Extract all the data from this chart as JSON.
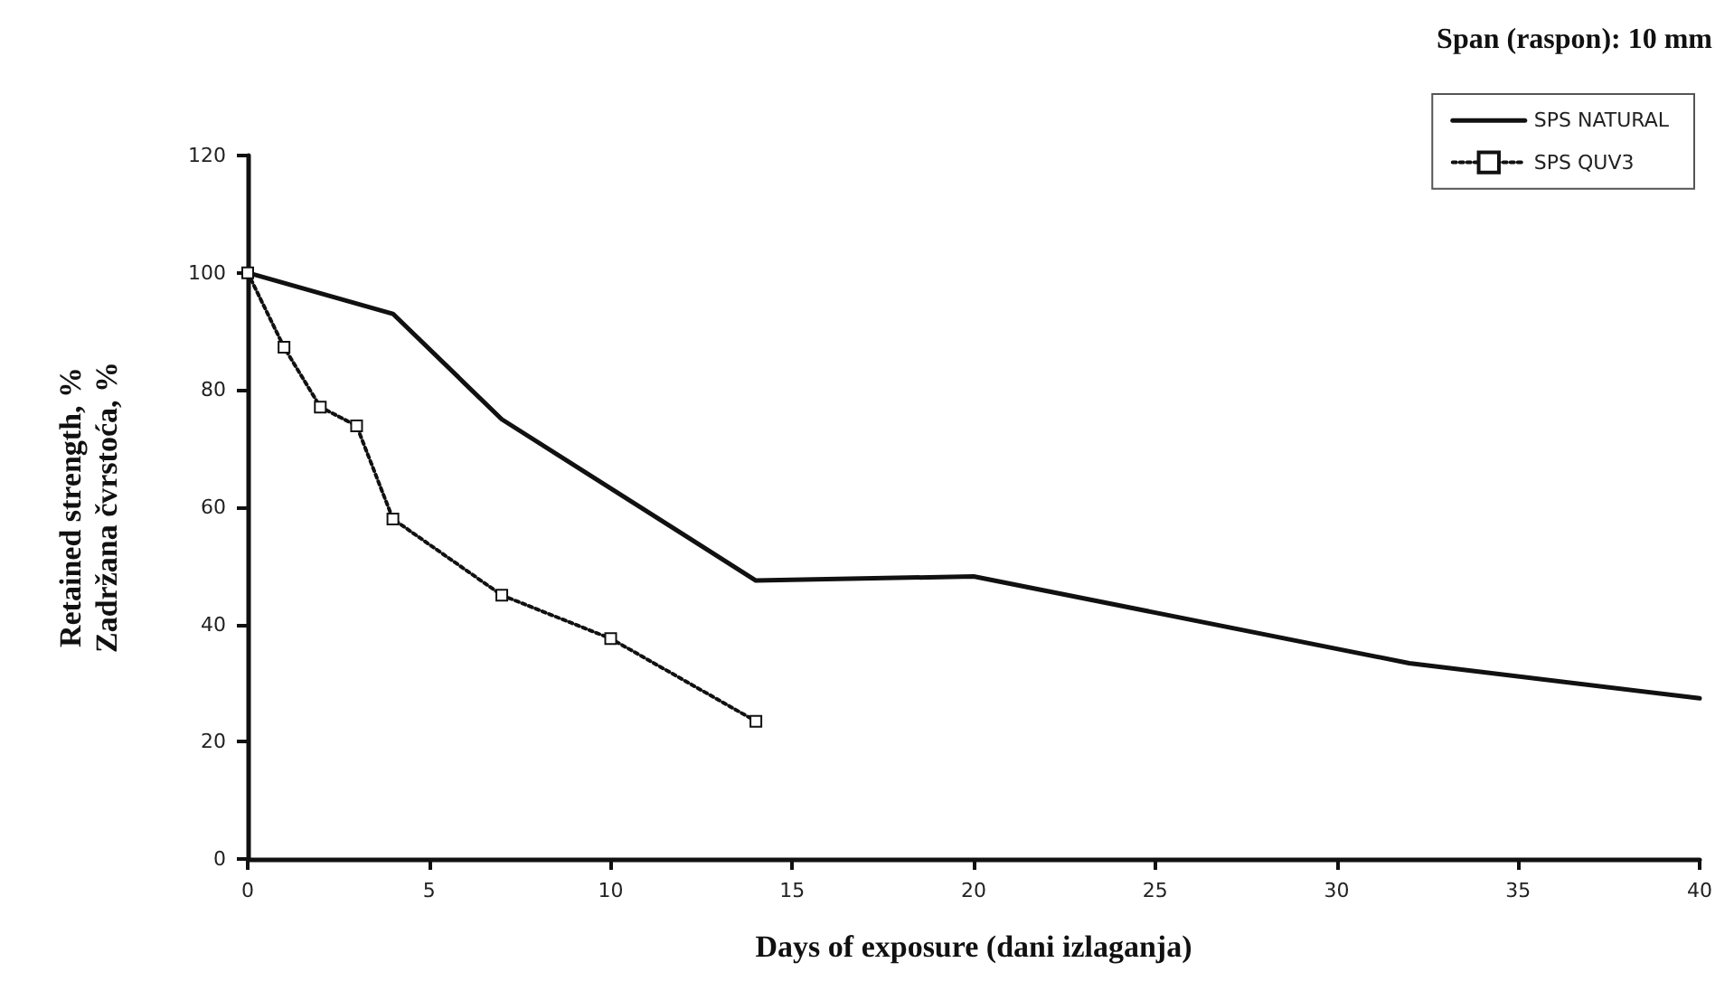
{
  "chart_data": {
    "type": "line",
    "annotations": [
      "Span (raspon): 10 mm"
    ],
    "xlabel": "Days of exposure (dani izlaganja)",
    "ylabel": "Retained strength, %\nZadržana čvrstoća, %",
    "xlim": [
      0,
      40
    ],
    "xticks": [
      0,
      5,
      10,
      15,
      20,
      25,
      30,
      35,
      40
    ],
    "ylim": [
      0,
      120
    ],
    "yticks": [
      0,
      20,
      40,
      60,
      80,
      100,
      120
    ],
    "grid": false,
    "legend": "top right",
    "series": [
      {
        "name": "SPS NATURAL",
        "color": "#111111",
        "line_style": "solid",
        "marker": "none",
        "x": [
          0,
          4,
          7,
          14,
          20,
          32,
          40
        ],
        "values": [
          100,
          93,
          75,
          47.5,
          48.2,
          33.4,
          27.4
        ]
      },
      {
        "name": "SPS QUV3",
        "color": "#111111",
        "line_style": "dotted",
        "marker": "square",
        "x": [
          0,
          1,
          2,
          3,
          4,
          7,
          10,
          14
        ],
        "values": [
          100,
          87.3,
          77.1,
          73.9,
          58,
          45,
          37.6,
          23.5
        ]
      }
    ]
  }
}
